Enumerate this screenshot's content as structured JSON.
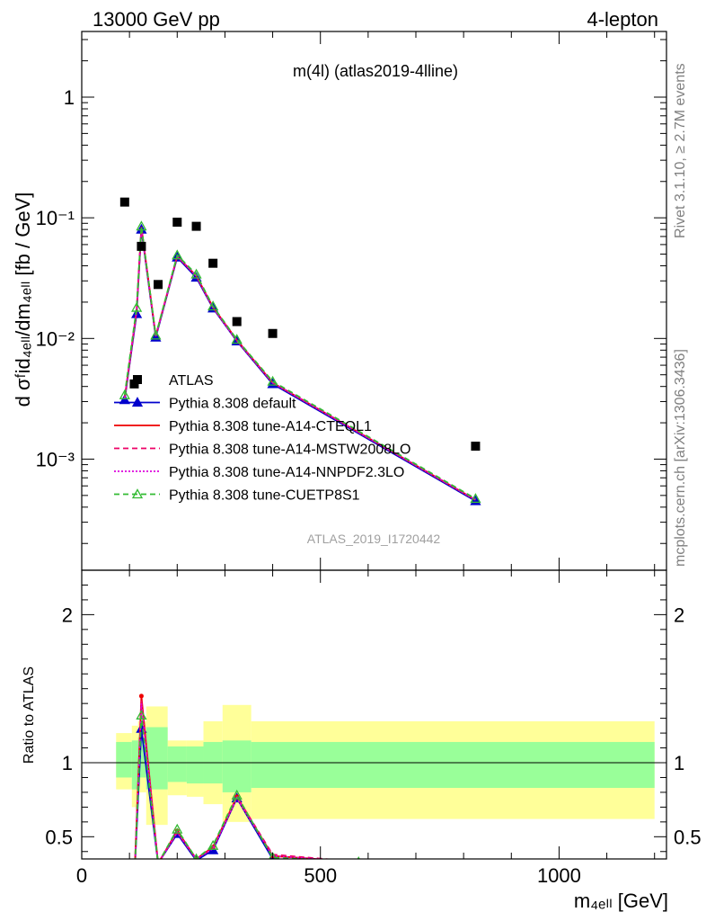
{
  "header": {
    "left": "13000 GeV pp",
    "right": "4-lepton"
  },
  "side_labels": {
    "rivet": "Rivet 3.1.10, ≥ 2.7M events",
    "mcplots": "mcplots.cern.ch [arXiv:1306.3436]"
  },
  "chart_data": [
    {
      "type": "line",
      "panel": "main",
      "title": "m(4l) (atlas2019-4lline)",
      "analysis_label": "ATLAS_2019_I1720442",
      "ylabel": "d σᶠid₄ₑₗₗ/dm₄ₑₗₗ [fb / GeV]",
      "yscale": "log",
      "ylim": [
        0.00012,
        3.5
      ],
      "xlim": [
        0,
        1225
      ],
      "y_ticks": [
        {
          "value": 1,
          "label": "1"
        },
        {
          "value": 0.1,
          "label": "10⁻¹"
        },
        {
          "value": 0.01,
          "label": "10⁻²"
        },
        {
          "value": 0.001,
          "label": "10⁻³"
        }
      ],
      "legend_position": "bottom-left",
      "data": {
        "name": "ATLAS",
        "x": [
          90,
          110,
          125,
          160,
          200,
          240,
          275,
          325,
          400,
          825
        ],
        "y": [
          0.135,
          0.0042,
          0.058,
          0.028,
          0.092,
          0.085,
          0.042,
          0.0138,
          0.011,
          0.00128
        ]
      },
      "mc_x": [
        90,
        115,
        125,
        155,
        200,
        240,
        275,
        325,
        400,
        825
      ],
      "series": [
        {
          "name": "Pythia 8.308 default",
          "color": "#0000cc",
          "style": "solid",
          "marker": "triangle-filled",
          "y": [
            0.0031,
            0.016,
            0.08,
            0.0102,
            0.047,
            0.032,
            0.0178,
            0.0095,
            0.0042,
            0.00045
          ]
        },
        {
          "name": "Pythia 8.308 tune-A14-CTEQL1",
          "color": "#ee0000",
          "style": "solid",
          "marker": "none",
          "y": [
            0.0032,
            0.017,
            0.084,
            0.0105,
            0.048,
            0.033,
            0.0182,
            0.0097,
            0.0043,
            0.00046
          ]
        },
        {
          "name": "Pythia 8.308 tune-A14-MSTW2008LO",
          "color": "#ee0066",
          "style": "dashed",
          "marker": "none",
          "y": [
            0.0032,
            0.017,
            0.083,
            0.0104,
            0.048,
            0.033,
            0.0181,
            0.0096,
            0.0043,
            0.00046
          ]
        },
        {
          "name": "Pythia 8.308 tune-A14-NNPDF2.3LO",
          "color": "#dd00dd",
          "style": "dotted",
          "marker": "none",
          "y": [
            0.0032,
            0.017,
            0.082,
            0.0104,
            0.048,
            0.033,
            0.018,
            0.0096,
            0.0043,
            0.00046
          ]
        },
        {
          "name": "Pythia 8.308 tune-CUETP8S1",
          "color": "#33bb33",
          "style": "dashed",
          "marker": "triangle-open",
          "y": [
            0.0034,
            0.018,
            0.085,
            0.0106,
            0.049,
            0.034,
            0.0185,
            0.0098,
            0.0044,
            0.00047
          ]
        }
      ]
    },
    {
      "type": "line",
      "panel": "ratio",
      "ylabel": "Ratio to ATLAS",
      "xlabel": "m₄ₑₗₗ [GeV]",
      "ylim": [
        0.35,
        2.3
      ],
      "xlim": [
        0,
        1225
      ],
      "y_ticks": [
        {
          "value": 0.5,
          "label": "0.5"
        },
        {
          "value": 1,
          "label": "1"
        },
        {
          "value": 2,
          "label": "2"
        }
      ],
      "x_ticks": [
        {
          "value": 0,
          "label": "0"
        },
        {
          "value": 500,
          "label": "500"
        },
        {
          "value": 1000,
          "label": "1000"
        }
      ],
      "bands": {
        "edges": [
          72,
          105,
          118,
          135,
          180,
          220,
          255,
          295,
          355,
          1200
        ],
        "inner": [
          [
            0.9,
            1.14
          ],
          [
            0.82,
            1.15
          ],
          [
            0.9,
            1.17
          ],
          [
            0.82,
            1.24
          ],
          [
            0.87,
            1.11
          ],
          [
            0.86,
            1.11
          ],
          [
            0.86,
            1.14
          ],
          [
            0.8,
            1.15
          ],
          [
            0.83,
            1.14
          ]
        ],
        "outer": [
          [
            0.82,
            1.2
          ],
          [
            0.7,
            1.25
          ],
          [
            0.8,
            1.28
          ],
          [
            0.58,
            1.38
          ],
          [
            0.78,
            1.15
          ],
          [
            0.77,
            1.15
          ],
          [
            0.72,
            1.28
          ],
          [
            0.6,
            1.39
          ],
          [
            0.62,
            1.28
          ]
        ]
      },
      "x": [
        110,
        125,
        160,
        200,
        240,
        275,
        325,
        400,
        580
      ],
      "series": [
        {
          "name": "Pythia 8.308 default",
          "color": "#0000cc",
          "style": "solid",
          "marker": "triangle-filled",
          "y": [
            0.2,
            1.23,
            0.32,
            0.52,
            0.34,
            0.41,
            0.76,
            0.35,
            0.32
          ]
        },
        {
          "name": "Pythia 8.308 tune-A14-CTEQL1",
          "color": "#ee0000",
          "style": "solid",
          "marker": "dot",
          "y": [
            0.2,
            1.45,
            0.32,
            0.54,
            0.35,
            0.43,
            0.77,
            0.37,
            0.33
          ]
        },
        {
          "name": "Pythia 8.308 tune-A14-MSTW2008LO",
          "color": "#ee0066",
          "style": "dashed",
          "marker": "none",
          "y": [
            0.2,
            1.42,
            0.32,
            0.53,
            0.35,
            0.42,
            0.77,
            0.38,
            0.33
          ]
        },
        {
          "name": "Pythia 8.308 tune-A14-NNPDF2.3LO",
          "color": "#dd00dd",
          "style": "dotted",
          "marker": "none",
          "y": [
            0.2,
            1.4,
            0.32,
            0.53,
            0.35,
            0.42,
            0.76,
            0.37,
            0.33
          ]
        },
        {
          "name": "Pythia 8.308 tune-CUETP8S1",
          "color": "#33bb33",
          "style": "dashed",
          "marker": "triangle-open",
          "y": [
            0.2,
            1.32,
            0.32,
            0.55,
            0.35,
            0.44,
            0.78,
            0.36,
            0.33
          ]
        }
      ]
    }
  ]
}
